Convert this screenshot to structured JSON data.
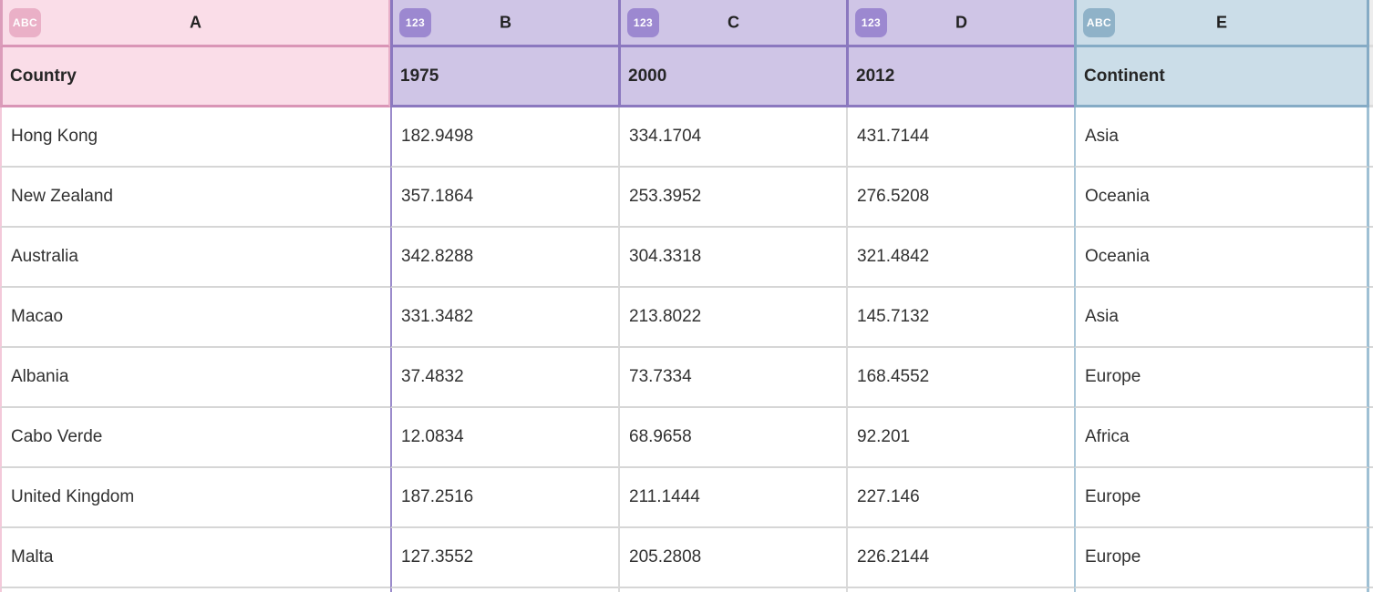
{
  "grid": {
    "columns": [
      {
        "letter": "A",
        "badge": "ABC",
        "field": "Country",
        "accent": "#db9cba",
        "background": "#fadde8",
        "badge_color": "#eab0c7"
      },
      {
        "letter": "B",
        "badge": "123",
        "field": "1975",
        "accent": "#8b78bf",
        "background": "#cfc5e6",
        "badge_color": "#9c88d0"
      },
      {
        "letter": "C",
        "badge": "123",
        "field": "2000",
        "accent": "#8b78bf",
        "background": "#cfc5e6",
        "badge_color": "#9c88d0"
      },
      {
        "letter": "D",
        "badge": "123",
        "field": "2012",
        "accent": "#8b78bf",
        "background": "#cfc5e6",
        "badge_color": "#9c88d0"
      },
      {
        "letter": "E",
        "badge": "ABC",
        "field": "Continent",
        "accent": "#85abc5",
        "background": "#cbdde8",
        "badge_color": "#8fb2c8"
      }
    ],
    "rows": [
      [
        "Hong Kong",
        "182.9498",
        "334.1704",
        "431.7144",
        "Asia"
      ],
      [
        "New Zealand",
        "357.1864",
        "253.3952",
        "276.5208",
        "Oceania"
      ],
      [
        "Australia",
        "342.8288",
        "304.3318",
        "321.4842",
        "Oceania"
      ],
      [
        "Macao",
        "331.3482",
        "213.8022",
        "145.7132",
        "Asia"
      ],
      [
        "Albania",
        "37.4832",
        "73.7334",
        "168.4552",
        "Europe"
      ],
      [
        "Cabo Verde",
        "12.0834",
        "68.9658",
        "92.201",
        "Africa"
      ],
      [
        "United Kingdom",
        "187.2516",
        "211.1444",
        "227.146",
        "Europe"
      ],
      [
        "Malta",
        "127.3552",
        "205.2808",
        "226.2144",
        "Europe"
      ]
    ],
    "colors": {
      "row_border": "#d6d6d6",
      "text": "#313131",
      "header_text": "#262626"
    }
  }
}
